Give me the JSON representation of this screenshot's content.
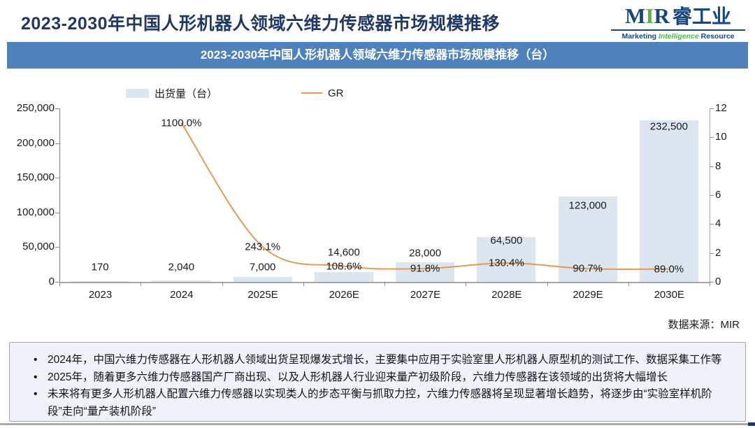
{
  "header": {
    "title": "2023-2030年中国人形机器人领域六维力传感器市场规模推移"
  },
  "logo": {
    "m": "M",
    "i": "I",
    "r": "R",
    "cn": "睿工业",
    "sub_1": "Marketing",
    "sub_2": "Intelligence",
    "sub_3": "Resource"
  },
  "banner": {
    "title": "2023-2030年中国人形机器人领域六维力传感器市场规模推移（台）"
  },
  "chart_data": {
    "type": "bar",
    "title": "2023-2030年中国人形机器人领域六维力传感器市场规模推移（台）",
    "categories": [
      "2023",
      "2024",
      "2025E",
      "2026E",
      "2027E",
      "2028E",
      "2029E",
      "2030E"
    ],
    "series": [
      {
        "name": "出货量（台）",
        "type": "bar",
        "axis": "left",
        "color": "#dce6f1",
        "values": [
          170,
          2040,
          7000,
          14600,
          28000,
          64500,
          123000,
          232500
        ],
        "labels": [
          "170",
          "2,040",
          "7,000",
          "14,600",
          "28,000",
          "64,500",
          "123,000",
          "232,500"
        ]
      },
      {
        "name": "GR",
        "type": "line",
        "axis": "right",
        "color": "#e49a55",
        "values_percent": [
          null,
          1100.0,
          243.1,
          108.6,
          91.8,
          130.4,
          90.7,
          89.0
        ],
        "labels": [
          null,
          "1100.0%",
          "243.1%",
          "108.6%",
          "91.8%",
          "130.4%",
          "90.7%",
          "89.0%"
        ]
      }
    ],
    "left_axis": {
      "min": 0,
      "max": 250000,
      "step": 50000,
      "tick_labels": [
        "0",
        "50,000",
        "100,000",
        "150,000",
        "200,000",
        "250,000"
      ]
    },
    "right_axis": {
      "min": 0,
      "max": 12,
      "step": 2,
      "tick_labels": [
        "0",
        "2",
        "4",
        "6",
        "8",
        "10",
        "12"
      ]
    },
    "legend_position": "top",
    "grid": false
  },
  "source": {
    "label": "数据来源：MIR"
  },
  "notes": {
    "items": [
      "2024年，中国六维力传感器在人形机器人领域出货呈现爆发式增长，主要集中应用于实验室里人形机器人原型机的测试工作、数据采集工作等",
      "2025年，随着更多六维力传感器国产厂商出现、以及人形机器人行业迎来量产初级阶段，六维力传感器在该领域的出货将大幅增长",
      "未来将有更多人形机器人配置六维力传感器以实现类人的步态平衡与抓取力控，六维力传感器将呈现显著增长趋势，将逐步由“实验室样机阶段”走向“量产装机阶段”"
    ]
  },
  "colors": {
    "title_navy": "#1f3864",
    "banner_blue": "#4f81bd",
    "bar_fill": "#dce6f1",
    "line_orange": "#e49a55",
    "logo_green": "#51b748",
    "notes_bg": "#eff2f8"
  }
}
